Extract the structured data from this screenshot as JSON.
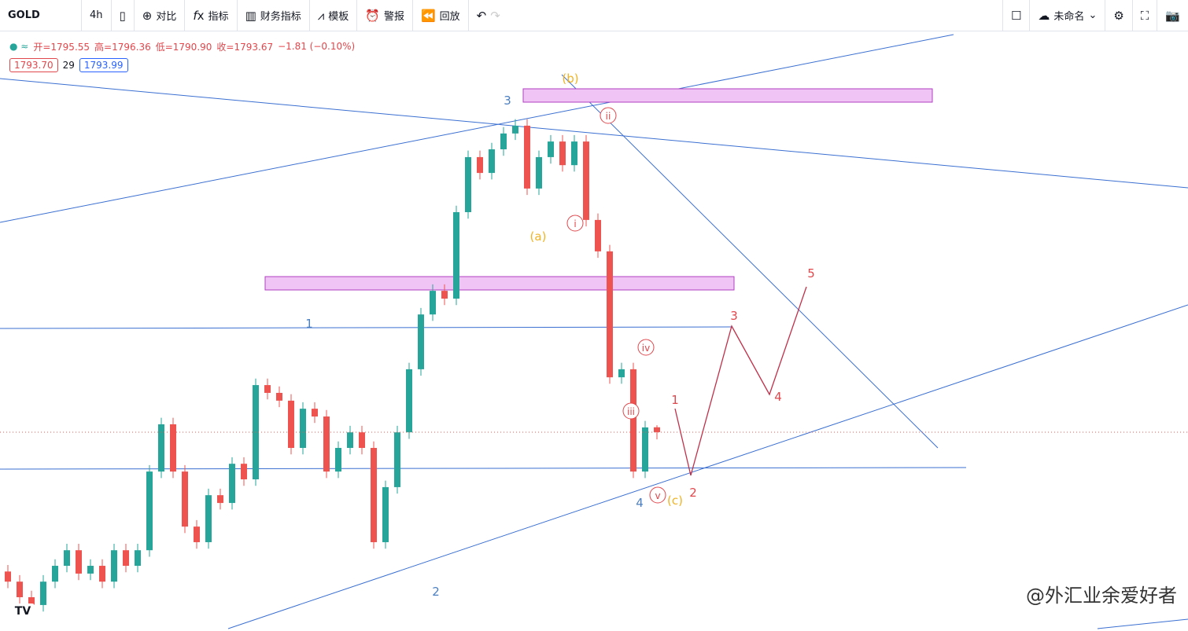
{
  "toolbar": {
    "symbol": "GOLD",
    "interval": "4h",
    "buttons": [
      "对比",
      "指标",
      "财务指标",
      "模板",
      "警报",
      "回放"
    ],
    "layout_name": "未命名"
  },
  "legend": {
    "ohlc": [
      "开=1795.55",
      "高=1796.36",
      "低=1790.90",
      "收=1793.67"
    ],
    "change": "−1.81 (−0.10%)",
    "bid": "1793.70",
    "spread": "29",
    "ask": "1793.99"
  },
  "watermark": "@外汇业余爱好者",
  "chart_data": {
    "type": "candlestick",
    "up_color": "#26a69a",
    "down_color": "#ef5350",
    "ylim": [
      1718,
      1948
    ],
    "open": [
      1740.0,
      1736.1,
      1730.1,
      1727.1,
      1736.1,
      1742.2,
      1748.2,
      1739.2,
      1742.2,
      1736.1,
      1748.2,
      1742.2,
      1748.2,
      1778.5,
      1796.7,
      1778.5,
      1757.3,
      1751.3,
      1769.4,
      1766.4,
      1781.5,
      1775.5,
      1811.8,
      1808.8,
      1805.8,
      1787.6,
      1802.7,
      1799.7,
      1778.5,
      1787.6,
      1793.6,
      1787.6,
      1751.3,
      1772.5,
      1793.6,
      1817.9,
      1839.0,
      1848.1,
      1845.1,
      1878.4,
      1899.6,
      1893.5,
      1902.6,
      1908.7,
      1911.7,
      1887.5,
      1899.6,
      1905.6,
      1896.5,
      1905.6,
      1875.4,
      1863.3,
      1814.8,
      1817.9,
      1778.5,
      1795.55
    ],
    "high": [
      1742.5,
      1738.6,
      1732.6,
      1738.6,
      1744.7,
      1750.7,
      1750.7,
      1744.7,
      1744.7,
      1750.7,
      1750.7,
      1750.7,
      1781.0,
      1799.2,
      1799.2,
      1781.0,
      1759.8,
      1771.9,
      1771.9,
      1784.0,
      1784.0,
      1814.3,
      1814.3,
      1811.3,
      1808.3,
      1805.2,
      1805.2,
      1802.2,
      1790.1,
      1796.1,
      1796.1,
      1790.1,
      1775.0,
      1796.1,
      1820.4,
      1841.5,
      1850.6,
      1850.6,
      1880.9,
      1902.1,
      1902.1,
      1905.1,
      1911.2,
      1914.2,
      1914.2,
      1902.1,
      1908.1,
      1908.1,
      1908.1,
      1908.1,
      1877.9,
      1865.8,
      1820.4,
      1820.4,
      1798.0,
      1796.36
    ],
    "low": [
      1733.6,
      1727.6,
      1724.6,
      1724.6,
      1733.6,
      1739.7,
      1736.7,
      1736.7,
      1733.6,
      1733.6,
      1739.7,
      1739.7,
      1745.7,
      1776.0,
      1776.0,
      1754.8,
      1748.8,
      1748.8,
      1763.9,
      1763.9,
      1773.0,
      1773.0,
      1806.3,
      1803.3,
      1785.1,
      1785.1,
      1797.2,
      1776.0,
      1776.0,
      1785.1,
      1785.1,
      1748.8,
      1748.8,
      1770.0,
      1791.1,
      1815.4,
      1836.5,
      1842.6,
      1842.6,
      1875.9,
      1891.0,
      1891.0,
      1900.1,
      1906.2,
      1885.0,
      1885.0,
      1897.1,
      1894.0,
      1894.0,
      1872.9,
      1860.8,
      1812.3,
      1812.3,
      1776.0,
      1776.0,
      1790.9
    ],
    "close": [
      1736.1,
      1730.1,
      1727.1,
      1736.1,
      1742.2,
      1748.2,
      1739.2,
      1742.2,
      1736.1,
      1748.2,
      1742.2,
      1748.2,
      1778.5,
      1796.7,
      1778.5,
      1757.3,
      1751.3,
      1769.4,
      1766.4,
      1781.5,
      1775.5,
      1811.8,
      1808.8,
      1805.8,
      1787.6,
      1802.7,
      1799.7,
      1778.5,
      1787.6,
      1793.6,
      1787.6,
      1751.3,
      1772.5,
      1793.6,
      1817.9,
      1839.0,
      1848.1,
      1845.1,
      1878.4,
      1899.6,
      1893.5,
      1902.6,
      1908.7,
      1911.7,
      1887.5,
      1899.6,
      1905.6,
      1896.5,
      1905.6,
      1875.4,
      1863.3,
      1814.8,
      1817.9,
      1778.5,
      1795.5,
      1793.67
    ],
    "annotations": [
      {
        "text": "3",
        "color": "#4a7fc1",
        "circled": false
      },
      {
        "text": "(b)",
        "color": "#f0b323",
        "circled": false
      },
      {
        "text": "ii",
        "color": "#e0474c",
        "circled": true
      },
      {
        "text": "i",
        "color": "#e0474c",
        "circled": true
      },
      {
        "text": "(a)",
        "color": "#f0b323",
        "circled": false
      },
      {
        "text": "1",
        "color": "#4a7fc1",
        "circled": false
      },
      {
        "text": "iv",
        "color": "#e0474c",
        "circled": true
      },
      {
        "text": "iii",
        "color": "#e0474c",
        "circled": true
      },
      {
        "text": "v",
        "color": "#e0474c",
        "circled": true
      },
      {
        "text": "4",
        "color": "#4a7fc1",
        "circled": false
      },
      {
        "text": "(c)",
        "color": "#f0b323",
        "circled": false
      },
      {
        "text": "2",
        "color": "#4a7fc1",
        "circled": false
      },
      {
        "text": "1",
        "color": "#e0474c",
        "circled": false
      },
      {
        "text": "2",
        "color": "#e0474c",
        "circled": false
      },
      {
        "text": "3",
        "color": "#e0474c",
        "circled": false
      },
      {
        "text": "4",
        "color": "#e0474c",
        "circled": false
      },
      {
        "text": "5",
        "color": "#e0474c",
        "circled": false
      }
    ]
  }
}
